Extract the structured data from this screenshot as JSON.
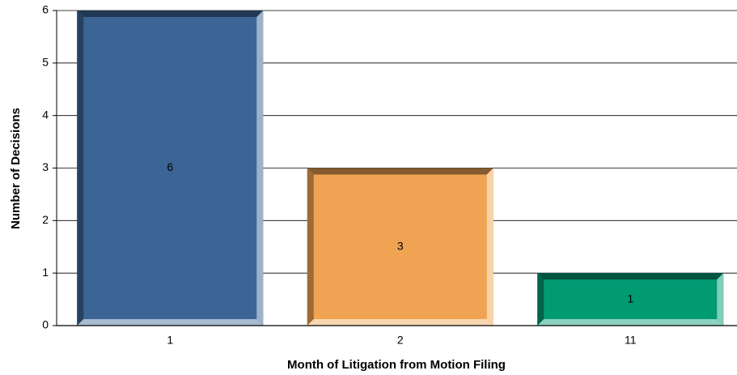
{
  "chart_data": {
    "type": "bar",
    "x_label": "Month of Litigation from Motion Filing",
    "y_label": "Number of Decisions",
    "categories": [
      "1",
      "2",
      "11"
    ],
    "values": [
      6,
      3,
      1
    ],
    "colors": [
      "#3b6595",
      "#f0a453",
      "#009a73"
    ],
    "ylim": [
      0,
      6
    ],
    "yticks": [
      0,
      1,
      2,
      3,
      4,
      5,
      6
    ],
    "grid": true
  }
}
